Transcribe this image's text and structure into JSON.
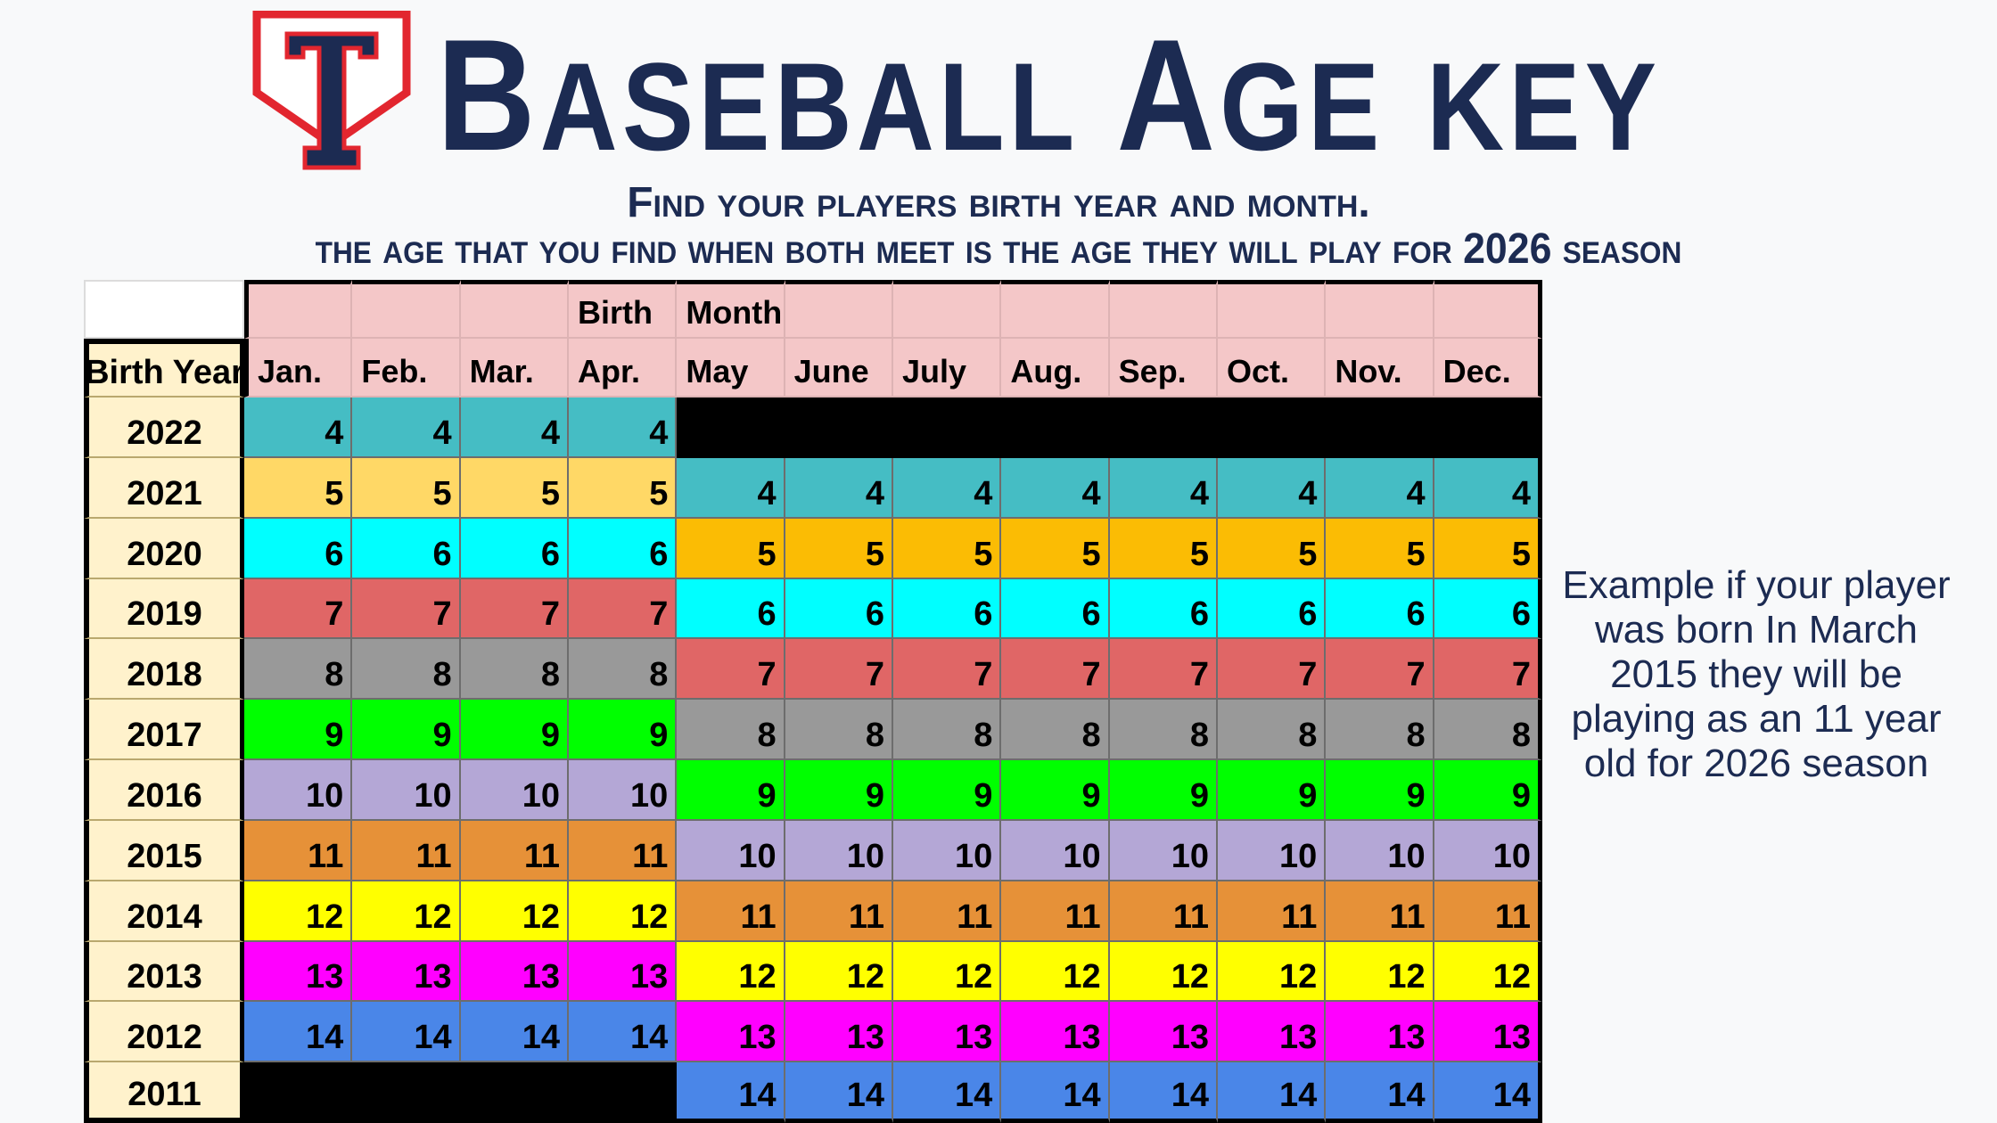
{
  "header": {
    "title": "Baseball Age key",
    "subtitle_line1": "Find your players birth year and month.",
    "subtitle_line2": "the age that you find when both meet is the age they will play for 2026 season",
    "logo_letter": "T"
  },
  "table": {
    "group_header": [
      "",
      "",
      "",
      "Birth",
      "Month",
      "",
      "",
      "",
      "",
      "",
      "",
      ""
    ],
    "year_header": "Birth Year",
    "months": [
      "Jan.",
      "Feb.",
      "Mar.",
      "Apr.",
      "May",
      "June",
      "July",
      "Aug.",
      "Sep.",
      "Oct.",
      "Nov.",
      "Dec."
    ],
    "rows": [
      {
        "year": "2022",
        "ages": [
          "4",
          "4",
          "4",
          "4",
          "",
          "",
          "",
          "",
          "",
          "",
          "",
          ""
        ]
      },
      {
        "year": "2021",
        "ages": [
          "5",
          "5",
          "5",
          "5",
          "4",
          "4",
          "4",
          "4",
          "4",
          "4",
          "4",
          "4"
        ]
      },
      {
        "year": "2020",
        "ages": [
          "6",
          "6",
          "6",
          "6",
          "5",
          "5",
          "5",
          "5",
          "5",
          "5",
          "5",
          "5"
        ]
      },
      {
        "year": "2019",
        "ages": [
          "7",
          "7",
          "7",
          "7",
          "6",
          "6",
          "6",
          "6",
          "6",
          "6",
          "6",
          "6"
        ]
      },
      {
        "year": "2018",
        "ages": [
          "8",
          "8",
          "8",
          "8",
          "7",
          "7",
          "7",
          "7",
          "7",
          "7",
          "7",
          "7"
        ]
      },
      {
        "year": "2017",
        "ages": [
          "9",
          "9",
          "9",
          "9",
          "8",
          "8",
          "8",
          "8",
          "8",
          "8",
          "8",
          "8"
        ]
      },
      {
        "year": "2016",
        "ages": [
          "10",
          "10",
          "10",
          "10",
          "9",
          "9",
          "9",
          "9",
          "9",
          "9",
          "9",
          "9"
        ]
      },
      {
        "year": "2015",
        "ages": [
          "11",
          "11",
          "11",
          "11",
          "10",
          "10",
          "10",
          "10",
          "10",
          "10",
          "10",
          "10"
        ]
      },
      {
        "year": "2014",
        "ages": [
          "12",
          "12",
          "12",
          "12",
          "11",
          "11",
          "11",
          "11",
          "11",
          "11",
          "11",
          "11"
        ]
      },
      {
        "year": "2013",
        "ages": [
          "13",
          "13",
          "13",
          "13",
          "12",
          "12",
          "12",
          "12",
          "12",
          "12",
          "12",
          "12"
        ]
      },
      {
        "year": "2012",
        "ages": [
          "14",
          "14",
          "14",
          "14",
          "13",
          "13",
          "13",
          "13",
          "13",
          "13",
          "13",
          "13"
        ]
      },
      {
        "year": "2011",
        "ages": [
          "",
          "",
          "",
          "",
          "14",
          "14",
          "14",
          "14",
          "14",
          "14",
          "14",
          "14"
        ]
      }
    ],
    "age_colors": {
      "4": "#45bdc4",
      "5_early": "#ffd866",
      "5_late": "#fbbc04",
      "6": "#00ffff",
      "7": "#e06666",
      "8": "#999999",
      "9": "#00ff00",
      "10": "#b4a7d6",
      "11": "#e69138",
      "12": "#ffff00",
      "13": "#ff00ff",
      "14": "#4a86e8",
      "empty": "#000000"
    }
  },
  "example": "Example if your player was born In March 2015 they will be playing as an 11 year old for 2026 season",
  "colors": {
    "navy": "#1c2b52",
    "logo_red": "#e2262f",
    "month_header_bg": "#f4c7c8",
    "year_header_bg": "#fff2cc"
  }
}
